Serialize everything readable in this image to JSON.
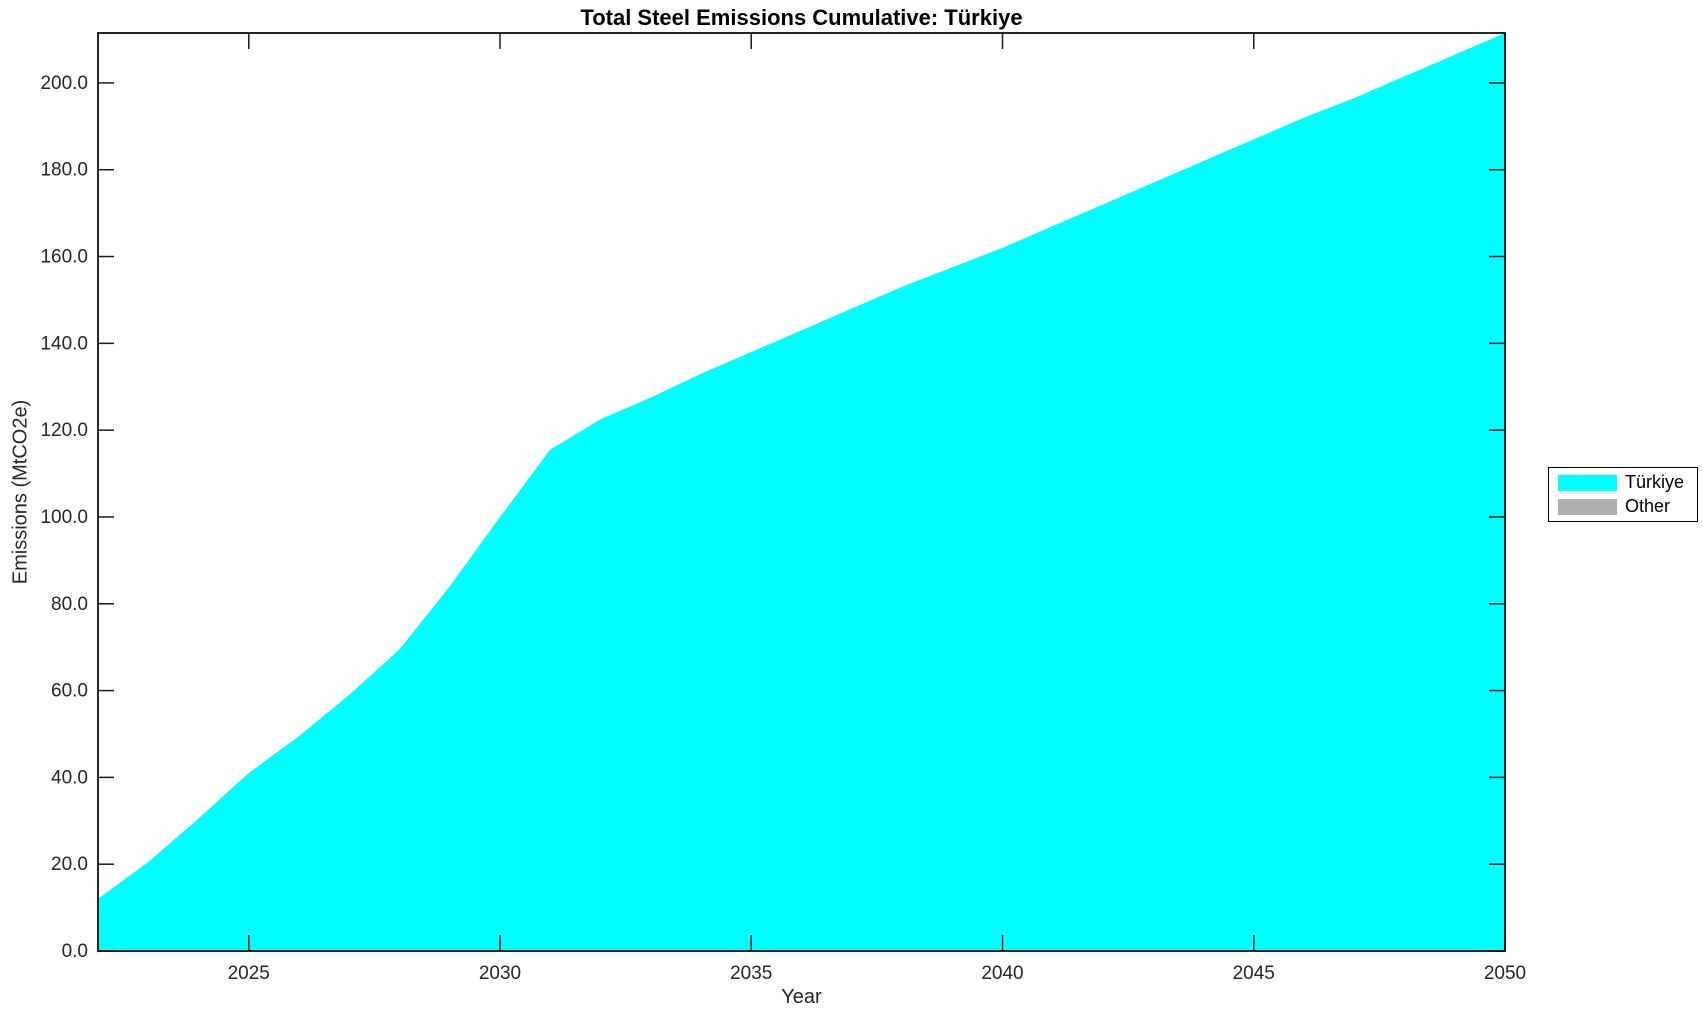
{
  "chart_data": {
    "type": "area",
    "title": "Total Steel Emissions Cumulative: Türkiye",
    "xlabel": "Year",
    "ylabel": "Emissions (MtCO2e)",
    "x": [
      2022,
      2023,
      2024,
      2025,
      2026,
      2027,
      2028,
      2029,
      2030,
      2031,
      2032,
      2033,
      2034,
      2035,
      2036,
      2037,
      2038,
      2039,
      2040,
      2041,
      2042,
      2043,
      2044,
      2045,
      2046,
      2047,
      2048,
      2049,
      2050
    ],
    "series": [
      {
        "name": "Türkiye",
        "color": "#00FFFF",
        "values": [
          12.0,
          20.5,
          30.5,
          41.0,
          49.5,
          59.0,
          69.5,
          84.0,
          100.0,
          115.5,
          122.5,
          127.5,
          133.0,
          138.0,
          143.0,
          148.0,
          153.0,
          157.5,
          162.0,
          167.0,
          172.0,
          177.0,
          182.0,
          187.0,
          192.0,
          196.5,
          201.5,
          206.5,
          211.5
        ]
      },
      {
        "name": "Other",
        "color": "#B0B0B0",
        "values": [
          0,
          0,
          0,
          0,
          0,
          0,
          0,
          0,
          0,
          0,
          0,
          0,
          0,
          0,
          0,
          0,
          0,
          0,
          0,
          0,
          0,
          0,
          0,
          0,
          0,
          0,
          0,
          0,
          0
        ]
      }
    ],
    "xlim": [
      2022,
      2050
    ],
    "ylim": [
      0,
      211.5
    ],
    "xticks": [
      2025,
      2030,
      2035,
      2040,
      2045,
      2050
    ],
    "xtick_labels": [
      "2025",
      "2030",
      "2035",
      "2040",
      "2045",
      "2050"
    ],
    "yticks": [
      0,
      20,
      40,
      60,
      80,
      100,
      120,
      140,
      160,
      180,
      200
    ],
    "ytick_labels": [
      "0.0",
      "20.0",
      "40.0",
      "60.0",
      "80.0",
      "100.0",
      "120.0",
      "140.0",
      "160.0",
      "180.0",
      "200.0"
    ],
    "grid": false,
    "box": true,
    "legend_position": "right-outside"
  }
}
